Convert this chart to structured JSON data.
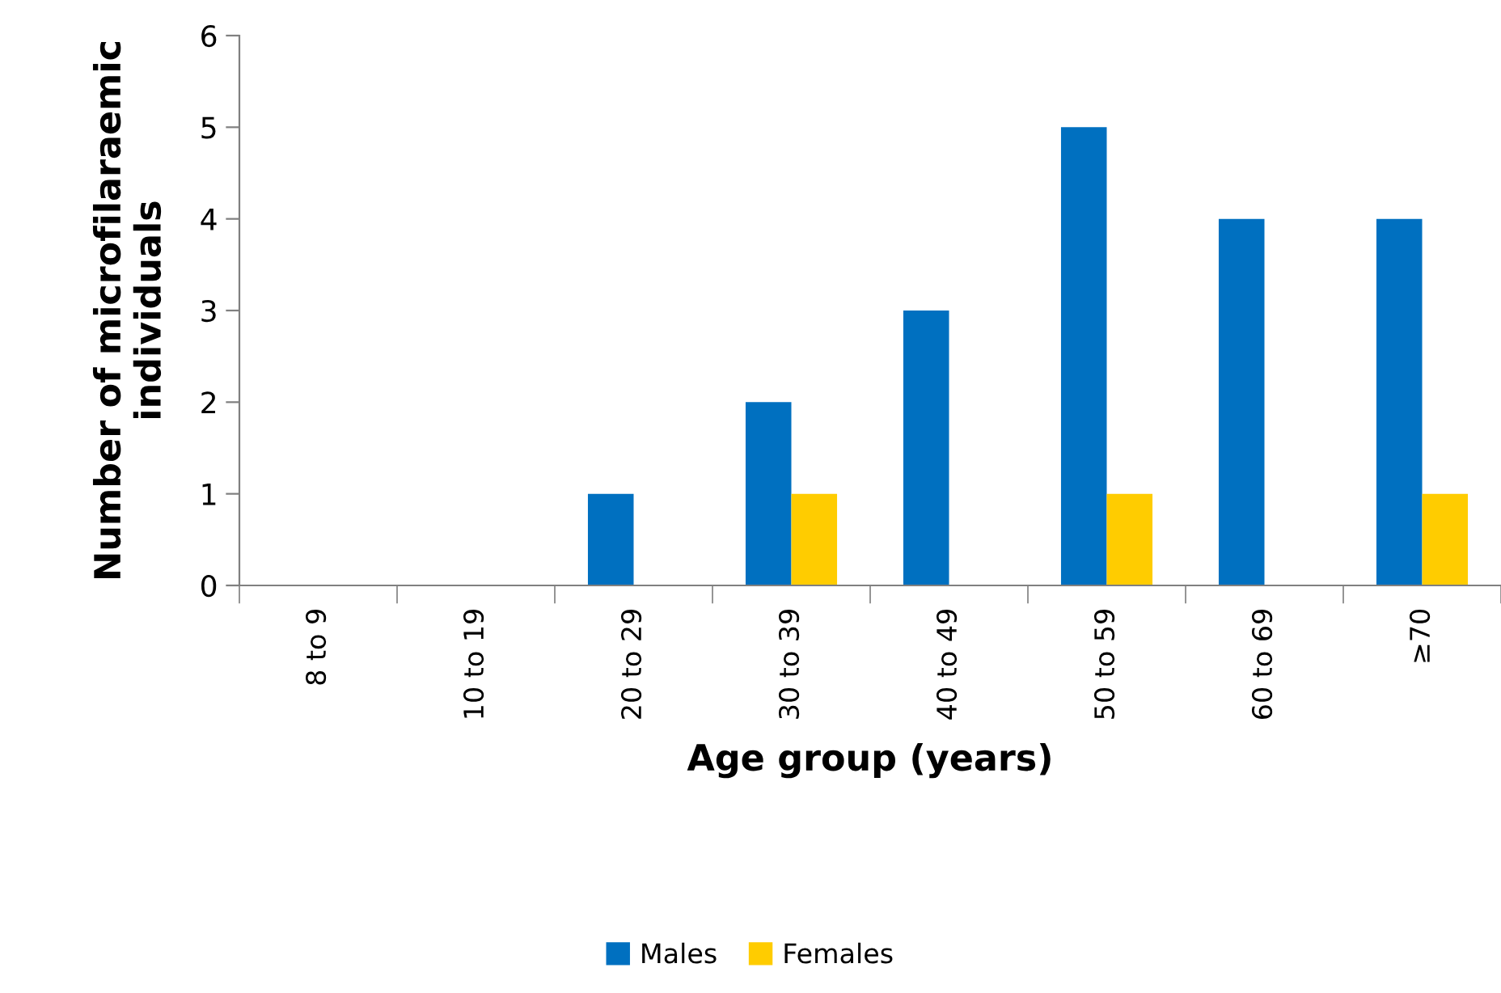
{
  "chart_data": {
    "type": "bar",
    "xlabel": "Age group (years)",
    "ylabel": "Number of microfilaraemic\nindividuals",
    "categories": [
      "8 to 9",
      "10 to 19",
      "20 to 29",
      "30 to 39",
      "40 to 49",
      "50 to 59",
      "60 to 69",
      "≥70"
    ],
    "series": [
      {
        "name": "Males",
        "color": "#0070c0",
        "values": [
          0,
          0,
          1,
          2,
          3,
          5,
          4,
          4
        ]
      },
      {
        "name": "Females",
        "color": "#ffcc00",
        "values": [
          0,
          0,
          0,
          1,
          0,
          1,
          0,
          1
        ]
      }
    ],
    "ylim": [
      0,
      6
    ],
    "yticks": [
      0,
      1,
      2,
      3,
      4,
      5,
      6
    ],
    "grid": false,
    "legend": "bottom"
  }
}
